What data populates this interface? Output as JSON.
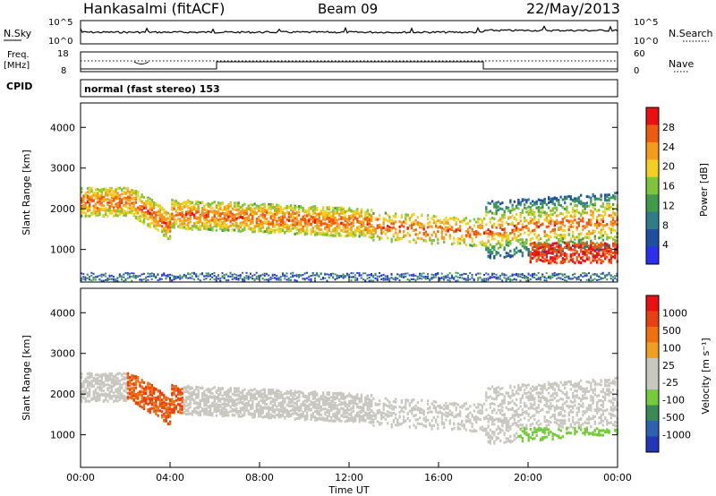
{
  "header": {
    "title": "Hankasalmi (fitACF)",
    "beam": "Beam 09",
    "date": "22/May/2013"
  },
  "panels": {
    "nsky_label": "N.Sky",
    "nsearch_label": "N.Search",
    "freq_label_line1": "Freq.",
    "freq_label_line2": "[MHz]",
    "nave_label": "Nave",
    "cpid_label": "CPID",
    "cpid_value": "normal (fast stereo) 153",
    "noise_ticks_left": [
      "10^5",
      "10^0"
    ],
    "noise_ticks_right": [
      "10^5",
      "10^0"
    ],
    "freq_ticks_left": [
      "18",
      "8"
    ],
    "freq_ticks_right": [
      "60",
      "0"
    ]
  },
  "chart_data": [
    {
      "type": "heatmap",
      "name": "power",
      "ylabel": "Slant Range [km]",
      "xlabel": "",
      "ylim": [
        200,
        4600
      ],
      "yticks": [
        "1000",
        "2000",
        "3000",
        "4000"
      ],
      "colorbar_label": "Power [dB]",
      "colorbar_ticks": [
        "28",
        "24",
        "20",
        "16",
        "12",
        "8",
        "4"
      ],
      "colors": [
        "#2b2ff0",
        "#1e4fa0",
        "#2f7d86",
        "#3f9a4a",
        "#7fc43a",
        "#f0d020",
        "#f59a1a",
        "#f05a10",
        "#e81010"
      ]
    },
    {
      "type": "heatmap",
      "name": "velocity",
      "ylabel": "Slant Range [km]",
      "xlabel": "Time UT",
      "ylim": [
        200,
        4600
      ],
      "yticks": [
        "1000",
        "2000",
        "3000",
        "4000"
      ],
      "xticks": [
        "00:00",
        "04:00",
        "08:00",
        "12:00",
        "16:00",
        "20:00",
        "00:00"
      ],
      "colorbar_label": "Velocity [m s⁻¹]",
      "colorbar_ticks": [
        "1000",
        "500",
        "100",
        "25",
        "-25",
        "-100",
        "-500",
        "-1000"
      ],
      "colors": [
        "#2436b8",
        "#2c62b0",
        "#3a8a55",
        "#74cc3a",
        "#c8c8c0",
        "#c8c8c0",
        "#f0a020",
        "#f07010",
        "#e84010",
        "#e81010"
      ]
    }
  ]
}
